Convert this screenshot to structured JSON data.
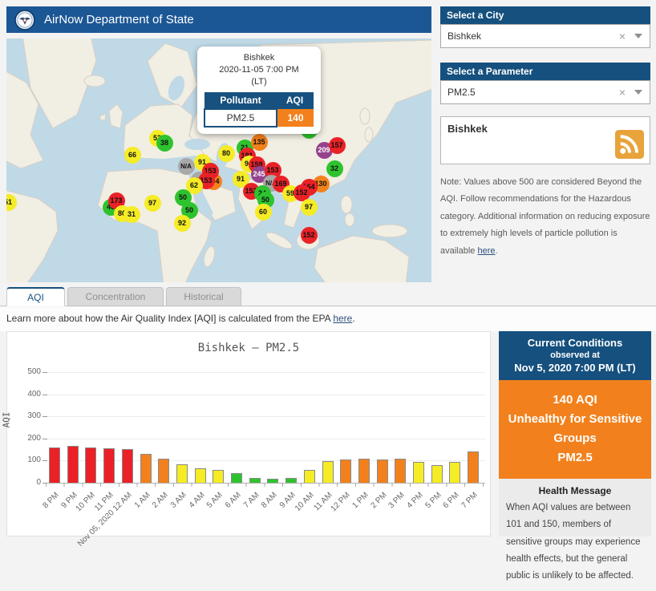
{
  "header": {
    "title": "AirNow Department of State"
  },
  "sidebar": {
    "city_select": {
      "label": "Select a City",
      "value": "Bishkek"
    },
    "parameter_select": {
      "label": "Select a Parameter",
      "value": "PM2.5"
    },
    "feed_box": {
      "title": "Bishkek"
    },
    "note": {
      "text_before_link": "Note: Values above 500 are considered Beyond the AQI. Follow recommendations for the Hazardous category. Additional information on reducing exposure to extremely high levels of particle pollution is available ",
      "link_text": "here",
      "text_after_link": "."
    }
  },
  "map": {
    "popup": {
      "city": "Bishkek",
      "datetime": "2020-11-05 7:00 PM",
      "tz": "(LT)",
      "table": {
        "col1": "Pollutant",
        "col2": "AQI",
        "pollutant": "PM2.5",
        "aqi": "140"
      }
    },
    "markers": [
      {
        "v": "51",
        "c": "yellow",
        "x": 2,
        "y": 204
      },
      {
        "v": "66",
        "c": "yellow",
        "x": 157,
        "y": 145
      },
      {
        "v": "53",
        "c": "yellow",
        "x": 188,
        "y": 124
      },
      {
        "v": "38",
        "c": "green",
        "x": 197,
        "y": 130
      },
      {
        "v": "46",
        "c": "green",
        "x": 130,
        "y": 210
      },
      {
        "v": "173",
        "c": "red",
        "x": 137,
        "y": 202
      },
      {
        "v": "80",
        "c": "yellow",
        "x": 144,
        "y": 218
      },
      {
        "v": "31",
        "c": "yellow",
        "x": 156,
        "y": 219
      },
      {
        "v": "97",
        "c": "yellow",
        "x": 182,
        "y": 205
      },
      {
        "v": "80",
        "c": "yellow",
        "x": 274,
        "y": 143
      },
      {
        "v": "N/A",
        "c": "gray",
        "x": 224,
        "y": 159
      },
      {
        "v": "91",
        "c": "yellow",
        "x": 244,
        "y": 154
      },
      {
        "v": "104",
        "c": "orange",
        "x": 258,
        "y": 178
      },
      {
        "v": "N/A",
        "c": "gray",
        "x": 240,
        "y": 176
      },
      {
        "v": "153",
        "c": "red",
        "x": 254,
        "y": 165
      },
      {
        "v": "153",
        "c": "red",
        "x": 249,
        "y": 177
      },
      {
        "v": "62",
        "c": "yellow",
        "x": 234,
        "y": 183
      },
      {
        "v": "50",
        "c": "green",
        "x": 220,
        "y": 198
      },
      {
        "v": "50",
        "c": "green",
        "x": 228,
        "y": 214
      },
      {
        "v": "92",
        "c": "yellow",
        "x": 219,
        "y": 230
      },
      {
        "v": "91",
        "c": "yellow",
        "x": 292,
        "y": 175
      },
      {
        "v": "21",
        "c": "green",
        "x": 297,
        "y": 136
      },
      {
        "v": "135",
        "c": "orange",
        "x": 315,
        "y": 129
      },
      {
        "v": "181",
        "c": "red",
        "x": 300,
        "y": 146
      },
      {
        "v": "94",
        "c": "yellow",
        "x": 302,
        "y": 156
      },
      {
        "v": "159",
        "c": "red",
        "x": 312,
        "y": 157
      },
      {
        "v": "245",
        "c": "purple",
        "x": 315,
        "y": 169
      },
      {
        "v": "153",
        "c": "red",
        "x": 332,
        "y": 164
      },
      {
        "v": "N/A",
        "c": "gray",
        "x": 330,
        "y": 180
      },
      {
        "v": "169",
        "c": "red",
        "x": 342,
        "y": 181
      },
      {
        "v": "152",
        "c": "red",
        "x": 305,
        "y": 190
      },
      {
        "v": "24",
        "c": "green",
        "x": 319,
        "y": 193
      },
      {
        "v": "50",
        "c": "green",
        "x": 323,
        "y": 201
      },
      {
        "v": "60",
        "c": "yellow",
        "x": 320,
        "y": 216
      },
      {
        "v": "59",
        "c": "yellow",
        "x": 354,
        "y": 193
      },
      {
        "v": "50",
        "c": "green",
        "x": 377,
        "y": 114
      },
      {
        "v": "209",
        "c": "purple",
        "x": 396,
        "y": 139
      },
      {
        "v": "157",
        "c": "red",
        "x": 412,
        "y": 133
      },
      {
        "v": "32",
        "c": "green",
        "x": 409,
        "y": 162
      },
      {
        "v": "130",
        "c": "orange",
        "x": 392,
        "y": 181
      },
      {
        "v": "164",
        "c": "red",
        "x": 377,
        "y": 185
      },
      {
        "v": "152",
        "c": "red",
        "x": 368,
        "y": 192
      },
      {
        "v": "97",
        "c": "yellow",
        "x": 377,
        "y": 210
      },
      {
        "v": "152",
        "c": "red",
        "x": 377,
        "y": 245
      }
    ]
  },
  "tabs": [
    {
      "label": "AQI",
      "active": true
    },
    {
      "label": "Concentration",
      "active": false
    },
    {
      "label": "Historical",
      "active": false
    }
  ],
  "learn_more": {
    "text_before_link": "Learn more about how the Air Quality Index [AQI] is calculated from the EPA ",
    "link_text": "here",
    "text_after_link": "."
  },
  "chart_data": {
    "type": "bar",
    "title": "Bishkek – PM2.5",
    "xlabel": "",
    "ylabel": "AQI",
    "ylim": [
      0,
      500
    ],
    "yticks": [
      0,
      100,
      200,
      300,
      400,
      500
    ],
    "grid": true,
    "legend": "none",
    "categories": [
      "8 PM",
      "9 PM",
      "10 PM",
      "11 PM",
      "Nov 05, 2020 12 AM",
      "1 AM",
      "2 AM",
      "3 AM",
      "4 AM",
      "5 AM",
      "6 AM",
      "7 AM",
      "8 AM",
      "9 AM",
      "10 AM",
      "11 AM",
      "12 PM",
      "1 PM",
      "2 PM",
      "3 PM",
      "4 PM",
      "5 PM",
      "6 PM",
      "7 PM"
    ],
    "values": [
      160,
      165,
      160,
      156,
      152,
      130,
      110,
      85,
      67,
      57,
      45,
      22,
      17,
      22,
      58,
      97,
      105,
      108,
      105,
      110,
      95,
      80,
      95,
      140
    ],
    "color_rule": "AQI category: <=50 green, <=100 yellow, <=150 orange, <=200 red"
  },
  "current_conditions": {
    "title": "Current Conditions",
    "subtitle": "observed at",
    "datetime": "Nov 5, 2020 7:00 PM (LT)",
    "aqi_line1": "140 AQI",
    "aqi_line2": "Unhealthy for Sensitive Groups",
    "aqi_line3": "PM2.5",
    "health_title": "Health Message",
    "health_text": "When AQI values are between 101 and 150, members of sensitive groups may experience health effects, but the general public is unlikely to be affected."
  },
  "aqi_colors": {
    "green": "#2EC32E",
    "yellow": "#F5EC26",
    "orange": "#F2811D",
    "red": "#EA2127",
    "purple": "#95438C",
    "gray": "#A8A8A8",
    "navy": "#17517F"
  }
}
